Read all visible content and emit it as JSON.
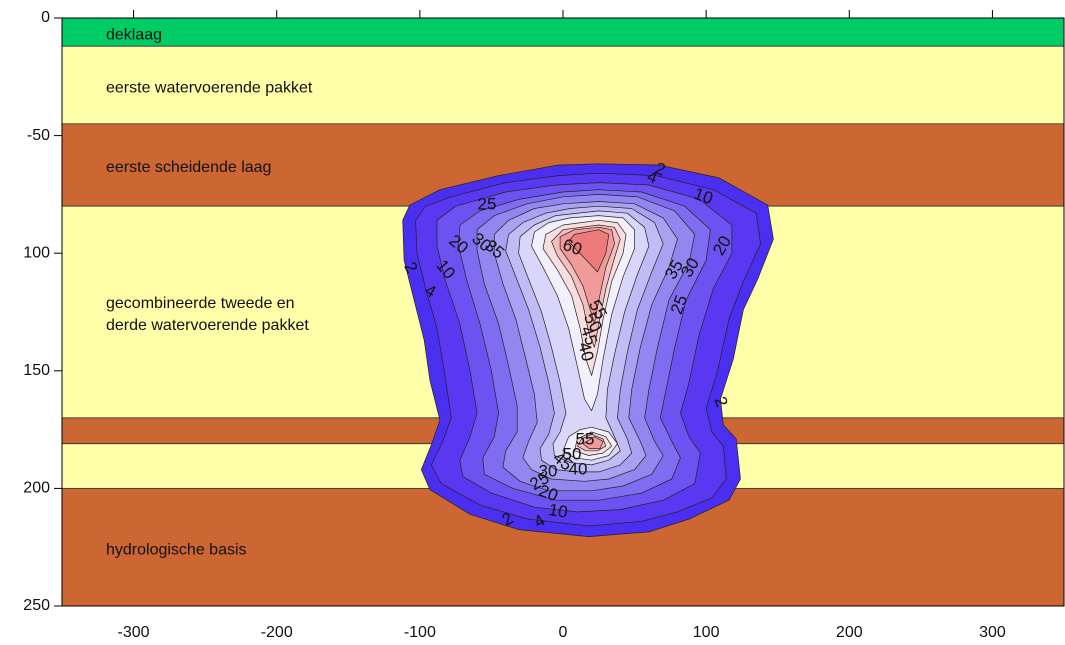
{
  "chart_data": {
    "type": "contour_section",
    "xlim": [
      -350,
      350
    ],
    "xticks": [
      -300,
      -200,
      -100,
      0,
      100,
      200,
      300
    ],
    "ylim": [
      0,
      250
    ],
    "y_inverted": true,
    "yticks": [
      0,
      {
        "value": 50,
        "label": "-50"
      },
      100,
      150,
      200,
      250
    ],
    "layers": [
      {
        "label": [
          "deklaag"
        ],
        "top": 0,
        "bottom": 12,
        "color": "#00cc66"
      },
      {
        "label": [
          "eerste watervoerende pakket"
        ],
        "top": 12,
        "bottom": 45,
        "color": "#ffffaa"
      },
      {
        "label": [
          "eerste scheidende laag"
        ],
        "top": 45,
        "bottom": 80,
        "color": "#cc6633"
      },
      {
        "label": [
          "gecombineerde tweede en",
          "derde watervoerende pakket"
        ],
        "top": 80,
        "bottom": 170,
        "color": "#ffffaa"
      },
      {
        "label": null,
        "top": 170,
        "bottom": 181,
        "color": "#cc6633"
      },
      {
        "label": null,
        "top": 181,
        "bottom": 200,
        "color": "#ffffaa"
      },
      {
        "label": [
          "hydrologische basis"
        ],
        "top": 200,
        "bottom": 250,
        "color": "#cc6633"
      }
    ],
    "contours": [
      {
        "level": 2,
        "color": "#4b2ff0",
        "polygons": [
          {
            "x": [
              25,
              67,
              109,
              143,
              147,
              136,
              126,
              119,
              110,
              112,
              121,
              124,
              116,
              88,
              60,
              18,
              -31,
              -65,
              -93,
              -99,
              -92,
              -86,
              -93,
              -97,
              -104,
              -111,
              -112,
              -107,
              -86,
              -45,
              -3
            ],
            "y": [
              62,
              62.5,
              68,
              79.5,
              94,
              111,
              124,
              145,
              162,
              173,
              179,
              196,
              205,
              213,
              218.5,
              220.5,
              217.5,
              211,
              200.5,
              192,
              181.5,
              171,
              154,
              137,
              120,
              103,
              86,
              79.5,
              73,
              67,
              62.5
            ]
          }
        ]
      },
      {
        "level": 4,
        "color": "#5a38f2",
        "polygons": [
          {
            "x": [
              25,
              65,
              105,
              135,
              138,
              126,
              116,
              108,
              100,
              104,
              112,
              114,
              104,
              80,
              55,
              18,
              -25,
              -58,
              -85,
              -92,
              -84,
              -78,
              -83,
              -88,
              -96,
              -102,
              -103,
              -96,
              -78,
              -40,
              -3
            ],
            "y": [
              66,
              67,
              73,
              83,
              96,
              112,
              128,
              150,
              166,
              176,
              182,
              196,
              204,
              210,
              214,
              216,
              213,
              207,
              198,
              190,
              180,
              170,
              150,
              132,
              115,
              100,
              86,
              80,
              76,
              70,
              67
            ]
          }
        ]
      },
      {
        "level": 10,
        "color": "#6c52f0",
        "polygons": [
          {
            "x": [
              25,
              60,
              95,
              118,
              118,
              105,
              95,
              88,
              82,
              88,
              96,
              92,
              70,
              40,
              10,
              -20,
              -50,
              -70,
              -72,
              -65,
              -60,
              -65,
              -72,
              -82,
              -88,
              -88,
              -75,
              -40,
              -5
            ],
            "y": [
              70,
              71,
              77,
              88,
              100,
              115,
              135,
              155,
              168,
              178,
              185,
              198,
              205,
              209,
              210,
              208,
              202,
              195,
              188,
              178,
              168,
              150,
              130,
              112,
              97,
              86,
              80,
              74,
              71
            ]
          }
        ]
      },
      {
        "level": 15,
        "color": "#7f6cf0",
        "polygons": [
          {
            "x": [
              25,
              55,
              85,
              103,
              100,
              86,
              78,
              72,
              68,
              76,
              82,
              76,
              55,
              25,
              -5,
              -35,
              -55,
              -56,
              -48,
              -45,
              -50,
              -58,
              -67,
              -73,
              -72,
              -58,
              -30,
              0
            ],
            "y": [
              73,
              74,
              80,
              90,
              103,
              120,
              140,
              158,
              170,
              180,
              187,
              196,
              202,
              205,
              205,
              200,
              194,
              187,
              178,
              168,
              150,
              130,
              112,
              97,
              88,
              82,
              77,
              74
            ]
          }
        ]
      },
      {
        "level": 20,
        "color": "#9486f0",
        "polygons": [
          {
            "x": [
              25,
              52,
              78,
              92,
              88,
              74,
              66,
              60,
              57,
              64,
              70,
              62,
              42,
              20,
              -10,
              -30,
              -42,
              -40,
              -32,
              -32,
              -38,
              -45,
              -55,
              -60,
              -60,
              -48,
              -25,
              0
            ],
            "y": [
              75,
              76,
              82,
              92,
              104,
              120,
              140,
              158,
              170,
              180,
              186,
              194,
              199,
              201,
              201,
              197,
              191,
              184,
              176,
              165,
              148,
              130,
              113,
              99,
              90,
              84,
              79,
              76
            ]
          }
        ]
      },
      {
        "level": 25,
        "color": "#aaa1f2",
        "polygons": [
          {
            "x": [
              25,
              50,
              70,
              80,
              74,
              62,
              54,
              48,
              46,
              54,
              58,
              50,
              32,
              15,
              -8,
              -22,
              -28,
              -24,
              -18,
              -20,
              -26,
              -33,
              -42,
              -48,
              -48,
              -38,
              -20,
              0
            ],
            "y": [
              78,
              79,
              85,
              94,
              106,
              122,
              140,
              158,
              170,
              180,
              186,
              192,
              196,
              197,
              196,
              192,
              187,
              180,
              172,
              160,
              145,
              128,
              113,
              100,
              92,
              86,
              81,
              79
            ]
          }
        ]
      },
      {
        "level": 30,
        "color": "#c1bcf5",
        "polygons": [
          {
            "x": [
              25,
              48,
              64,
              70,
              62,
              52,
              45,
              40,
              38,
              45,
              48,
              40,
              25,
              10,
              -5,
              -15,
              -16,
              -10,
              -6,
              -10,
              -16,
              -24,
              -33,
              -40,
              -38,
              -28,
              -12,
              5
            ],
            "y": [
              80,
              81,
              87,
              96,
              108,
              124,
              142,
              158,
              170,
              179,
              185,
              190,
              193,
              193,
              192,
              188,
              183,
              177,
              168,
              155,
              140,
              124,
              110,
              99,
              92,
              87,
              83,
              81
            ]
          }
        ]
      },
      {
        "level": 35,
        "color": "#d9d6f9",
        "polygons": [
          {
            "x": [
              25,
              45,
              57,
              60,
              52,
              43,
              36,
              31,
              30,
              36,
              40,
              32,
              20,
              5,
              -6,
              -7,
              -2,
              2,
              -2,
              -8,
              -15,
              -24,
              -31,
              -30,
              -20,
              -5
            ],
            "y": [
              82,
              83,
              89,
              97,
              109,
              125,
              143,
              158,
              170,
              178,
              184,
              188,
              190,
              189,
              186,
              181,
              176,
              168,
              155,
              140,
              125,
              111,
              100,
              93,
              88,
              84
            ]
          }
        ]
      },
      {
        "level": 40,
        "color": "#f2f0fc",
        "polygons": [
          {
            "x": [
              25,
              42,
              50,
              50,
              42,
              34,
              28,
              24,
              20,
              15,
              10,
              4,
              -4,
              -14,
              -22,
              -20,
              -10,
              5
            ],
            "y": [
              84,
              85,
              90,
              98,
              110,
              126,
              145,
              160,
              167,
              162,
              148,
              132,
              118,
              106,
              97,
              91,
              87,
              85
            ]
          },
          {
            "x": [
              20,
              32,
              38,
              32,
              20,
              8,
              0,
              4,
              12
            ],
            "y": [
              174,
              176,
              181,
              186,
              188,
              187,
              184,
              178,
              175
            ]
          }
        ]
      },
      {
        "level": 45,
        "color": "#f8dede",
        "polygons": [
          {
            "x": [
              25,
              38,
              44,
              42,
              34,
              28,
              24,
              20,
              16,
              12,
              6,
              -4,
              -14,
              -12,
              0
            ],
            "y": [
              86,
              87,
              92,
              100,
              112,
              128,
              142,
              152,
              145,
              132,
              118,
              107,
              98,
              92,
              88
            ]
          },
          {
            "x": [
              20,
              30,
              34,
              28,
              18,
              8,
              10
            ],
            "y": [
              176,
              178,
              182,
              185,
              186,
              184,
              179
            ]
          }
        ]
      },
      {
        "level": 50,
        "color": "#f5bdbd",
        "polygons": [
          {
            "x": [
              25,
              36,
              40,
              36,
              30,
              25,
              22,
              18,
              14,
              6,
              -4,
              -8,
              0
            ],
            "y": [
              88,
              89,
              94,
              102,
              115,
              130,
              140,
              134,
              122,
              110,
              101,
              95,
              90
            ]
          },
          {
            "x": [
              20,
              28,
              30,
              24,
              16,
              10,
              13
            ],
            "y": [
              177,
              179,
              182,
              184,
              184,
              182,
              179
            ]
          }
        ]
      },
      {
        "level": 55,
        "color": "#f19a9a",
        "polygons": [
          {
            "x": [
              25,
              34,
              36,
              30,
              25,
              22,
              19,
              14,
              6,
              -2,
              -2,
              8
            ],
            "y": [
              89,
              90,
              96,
              106,
              120,
              130,
              124,
              114,
              105,
              98,
              93,
              90
            ]
          },
          {
            "x": [
              22,
              28,
              26,
              18,
              14
            ],
            "y": [
              178,
              180,
              183,
              183,
              181
            ]
          }
        ]
      },
      {
        "level": 60,
        "color": "#ee7b7b",
        "polygons": [
          {
            "x": [
              25,
              32,
              30,
              24,
              18,
              10,
              4,
              8
            ],
            "y": [
              90,
              92,
              100,
              108,
              104,
              99,
              95,
              92
            ]
          }
        ]
      }
    ]
  }
}
